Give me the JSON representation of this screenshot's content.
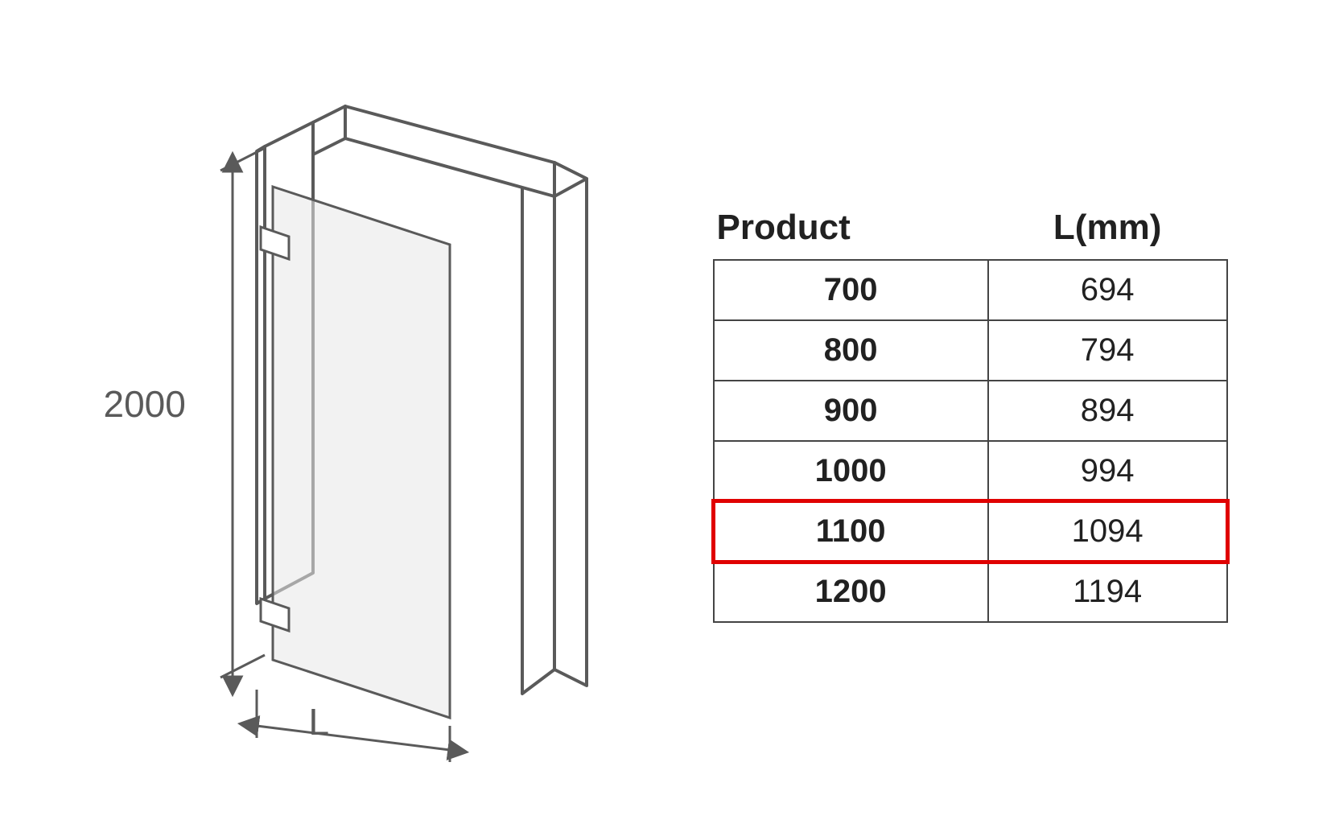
{
  "diagram": {
    "height_label": "2000",
    "width_label": "L",
    "stroke_color": "#5a5a5a",
    "stroke_width": 4,
    "glass_fill": "#e8e8e8",
    "wall_fill": "#ffffff"
  },
  "table": {
    "headers": {
      "col1": "Product",
      "col2": "L(mm)"
    },
    "rows": [
      {
        "product": "700",
        "l_mm": "694",
        "highlight": false
      },
      {
        "product": "800",
        "l_mm": "794",
        "highlight": false
      },
      {
        "product": "900",
        "l_mm": "894",
        "highlight": false
      },
      {
        "product": "1000",
        "l_mm": "994",
        "highlight": false
      },
      {
        "product": "1100",
        "l_mm": "1094",
        "highlight": true
      },
      {
        "product": "1200",
        "l_mm": "1194",
        "highlight": false
      }
    ],
    "header_font_size": 44,
    "cell_font_size": 40,
    "border_color": "#444444",
    "highlight_color": "#e00000",
    "text_color": "#212121"
  }
}
